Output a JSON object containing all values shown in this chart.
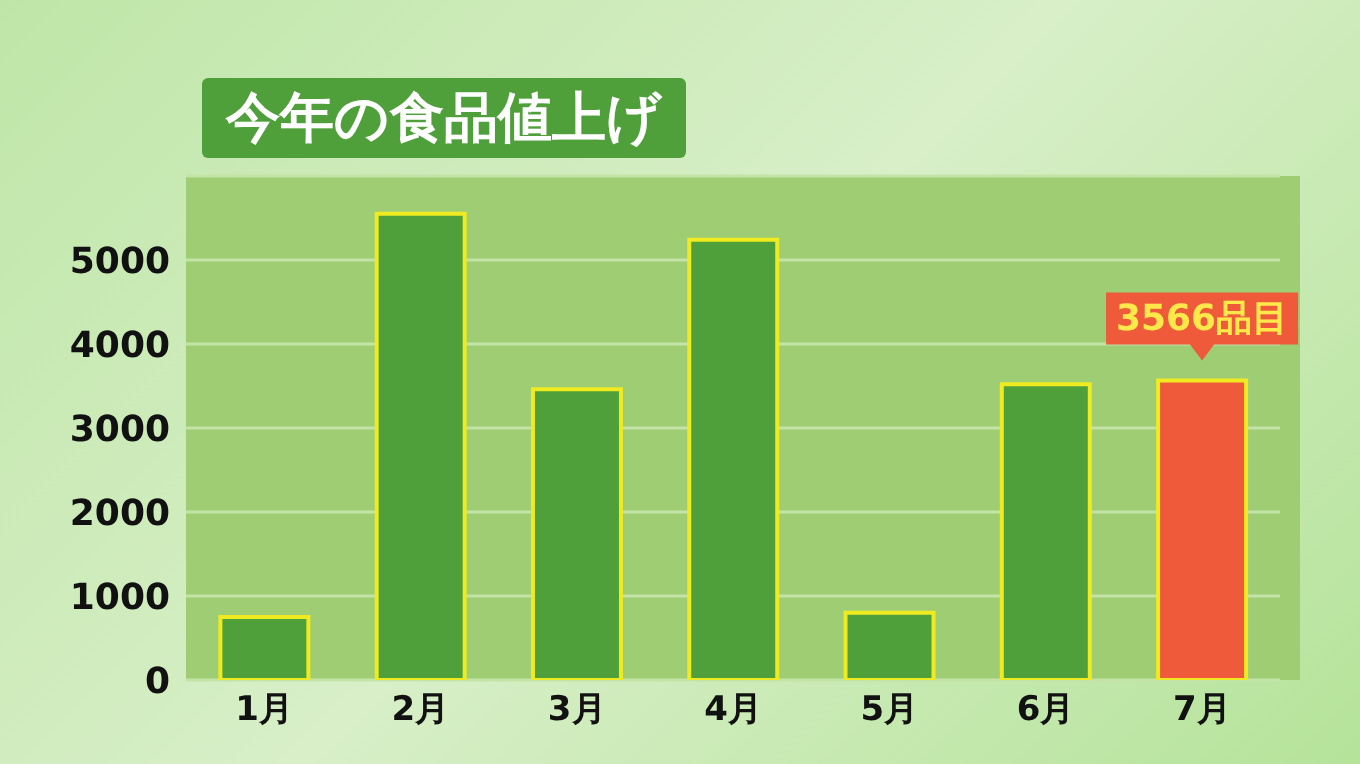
{
  "chart_data": {
    "type": "bar",
    "title": "今年の食品値上げ",
    "categories": [
      "1月",
      "2月",
      "3月",
      "4月",
      "5月",
      "6月",
      "7月"
    ],
    "values": [
      750,
      5550,
      3460,
      5240,
      800,
      3520,
      3566
    ],
    "colors": [
      "#4fa03a",
      "#4fa03a",
      "#4fa03a",
      "#4fa03a",
      "#4fa03a",
      "#4fa03a",
      "#ee5a3a"
    ],
    "value_labels": [
      null,
      null,
      null,
      null,
      null,
      null,
      "3566品目"
    ],
    "ylim": [
      0,
      6000
    ],
    "yticks": [
      0,
      1000,
      2000,
      3000,
      4000,
      5000
    ],
    "grid": "y"
  }
}
